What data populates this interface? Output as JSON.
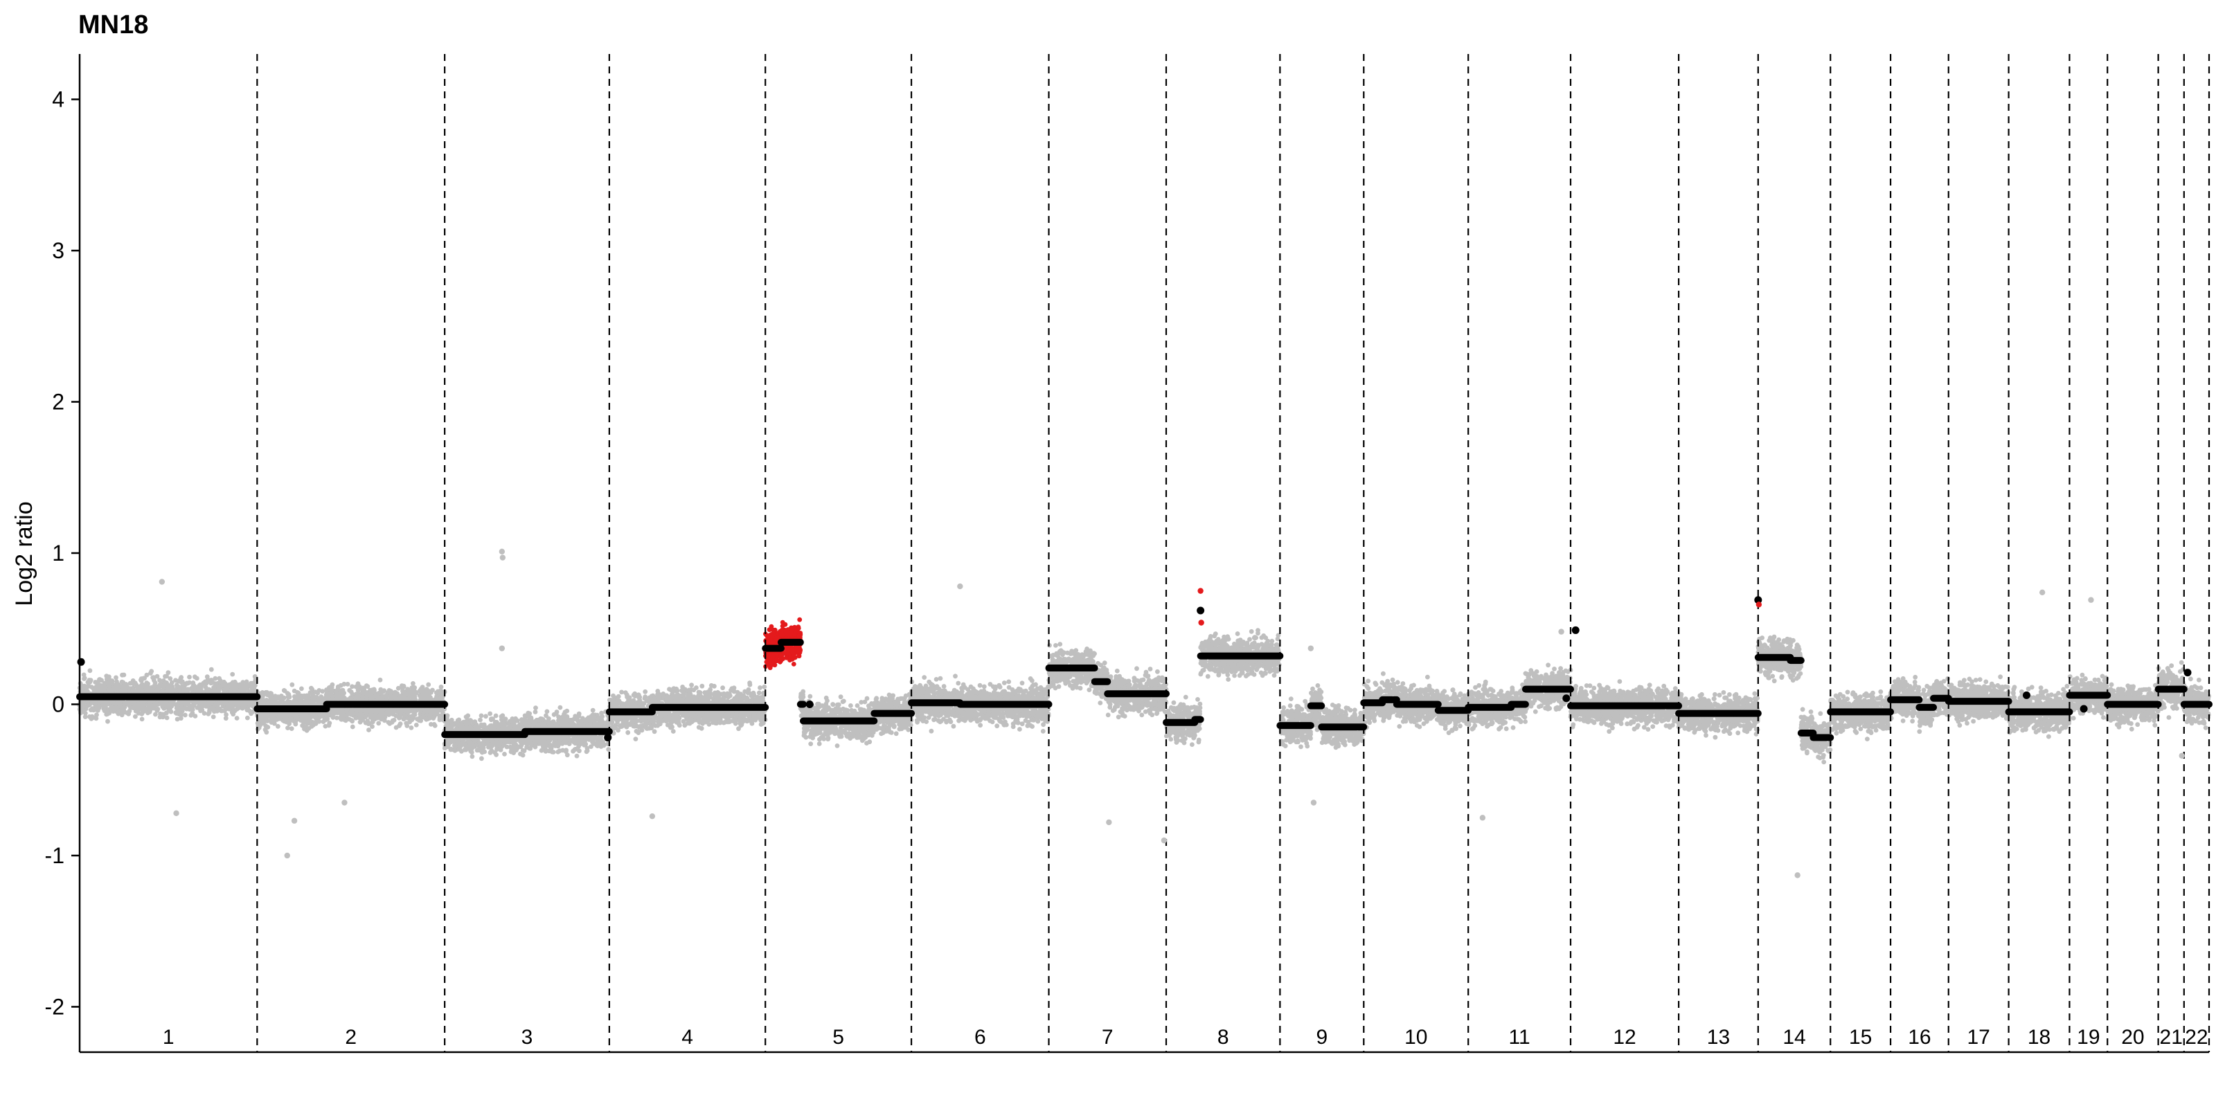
{
  "chart_data": {
    "type": "scatter",
    "title": "MN18",
    "xlabel": "",
    "ylabel": "Log2 ratio",
    "ylim": [
      -2.3,
      4.3
    ],
    "yticks": [
      -2,
      -1,
      0,
      1,
      2,
      3,
      4
    ],
    "grid": false,
    "legend": "none",
    "colors": {
      "probe_points": "#bfbfbf",
      "gain_points": "#e41a1c",
      "segments": "#000000",
      "boundaries": "#000000",
      "axis": "#000000"
    },
    "chromosomes": [
      {
        "label": "1",
        "start": 0,
        "end": 248
      },
      {
        "label": "2",
        "start": 248,
        "end": 510
      },
      {
        "label": "3",
        "start": 510,
        "end": 740
      },
      {
        "label": "4",
        "start": 740,
        "end": 958
      },
      {
        "label": "5",
        "start": 958,
        "end": 1162
      },
      {
        "label": "6",
        "start": 1162,
        "end": 1354
      },
      {
        "label": "7",
        "start": 1354,
        "end": 1518
      },
      {
        "label": "8",
        "start": 1518,
        "end": 1677
      },
      {
        "label": "9",
        "start": 1677,
        "end": 1794
      },
      {
        "label": "10",
        "start": 1794,
        "end": 1940
      },
      {
        "label": "11",
        "start": 1940,
        "end": 2083
      },
      {
        "label": "12",
        "start": 2083,
        "end": 2234
      },
      {
        "label": "13",
        "start": 2234,
        "end": 2345
      },
      {
        "label": "14",
        "start": 2345,
        "end": 2446
      },
      {
        "label": "15",
        "start": 2446,
        "end": 2530
      },
      {
        "label": "16",
        "start": 2530,
        "end": 2611
      },
      {
        "label": "17",
        "start": 2611,
        "end": 2695
      },
      {
        "label": "18",
        "start": 2695,
        "end": 2780
      },
      {
        "label": "19",
        "start": 2780,
        "end": 2833
      },
      {
        "label": "20",
        "start": 2833,
        "end": 2904
      },
      {
        "label": "21",
        "start": 2904,
        "end": 2940
      },
      {
        "label": "22",
        "start": 2940,
        "end": 2975
      }
    ],
    "segments": [
      {
        "chrom": "1",
        "start": 0,
        "end": 248,
        "value": 0.05
      },
      {
        "chrom": "2",
        "start": 248,
        "end": 345,
        "value": -0.03
      },
      {
        "chrom": "2",
        "start": 345,
        "end": 510,
        "value": 0.0
      },
      {
        "chrom": "3",
        "start": 510,
        "end": 622,
        "value": -0.2
      },
      {
        "chrom": "3",
        "start": 622,
        "end": 740,
        "value": -0.18
      },
      {
        "chrom": "4",
        "start": 740,
        "end": 800,
        "value": -0.05
      },
      {
        "chrom": "4",
        "start": 800,
        "end": 958,
        "value": -0.02
      },
      {
        "chrom": "5",
        "start": 958,
        "end": 980,
        "value": 0.37
      },
      {
        "chrom": "5",
        "start": 980,
        "end": 1007,
        "value": 0.41
      },
      {
        "chrom": "5",
        "start": 1007,
        "end": 1011,
        "value": 0.0
      },
      {
        "chrom": "5",
        "start": 1011,
        "end": 1110,
        "value": -0.11
      },
      {
        "chrom": "5",
        "start": 1110,
        "end": 1162,
        "value": -0.06
      },
      {
        "chrom": "6",
        "start": 1162,
        "end": 1230,
        "value": 0.01
      },
      {
        "chrom": "6",
        "start": 1230,
        "end": 1354,
        "value": 0.0
      },
      {
        "chrom": "7",
        "start": 1354,
        "end": 1418,
        "value": 0.24
      },
      {
        "chrom": "7",
        "start": 1418,
        "end": 1436,
        "value": 0.15
      },
      {
        "chrom": "7",
        "start": 1436,
        "end": 1518,
        "value": 0.07
      },
      {
        "chrom": "8",
        "start": 1518,
        "end": 1558,
        "value": -0.12
      },
      {
        "chrom": "8",
        "start": 1558,
        "end": 1566,
        "value": -0.1
      },
      {
        "chrom": "8",
        "start": 1566,
        "end": 1677,
        "value": 0.32
      },
      {
        "chrom": "9",
        "start": 1677,
        "end": 1720,
        "value": -0.14
      },
      {
        "chrom": "9",
        "start": 1720,
        "end": 1735,
        "value": -0.01
      },
      {
        "chrom": "9",
        "start": 1735,
        "end": 1794,
        "value": -0.15
      },
      {
        "chrom": "10",
        "start": 1794,
        "end": 1820,
        "value": 0.01
      },
      {
        "chrom": "10",
        "start": 1820,
        "end": 1840,
        "value": 0.03
      },
      {
        "chrom": "10",
        "start": 1840,
        "end": 1898,
        "value": 0.0
      },
      {
        "chrom": "10",
        "start": 1898,
        "end": 1940,
        "value": -0.04
      },
      {
        "chrom": "11",
        "start": 1940,
        "end": 2000,
        "value": -0.02
      },
      {
        "chrom": "11",
        "start": 2000,
        "end": 2020,
        "value": 0.0
      },
      {
        "chrom": "11",
        "start": 2020,
        "end": 2083,
        "value": 0.1
      },
      {
        "chrom": "12",
        "start": 2083,
        "end": 2234,
        "value": -0.01
      },
      {
        "chrom": "13",
        "start": 2234,
        "end": 2345,
        "value": -0.06
      },
      {
        "chrom": "14",
        "start": 2345,
        "end": 2390,
        "value": 0.31
      },
      {
        "chrom": "14",
        "start": 2390,
        "end": 2405,
        "value": 0.29
      },
      {
        "chrom": "14",
        "start": 2405,
        "end": 2422,
        "value": -0.19
      },
      {
        "chrom": "14",
        "start": 2422,
        "end": 2446,
        "value": -0.22
      },
      {
        "chrom": "15",
        "start": 2446,
        "end": 2530,
        "value": -0.05
      },
      {
        "chrom": "16",
        "start": 2530,
        "end": 2570,
        "value": 0.03
      },
      {
        "chrom": "16",
        "start": 2570,
        "end": 2590,
        "value": -0.02
      },
      {
        "chrom": "16",
        "start": 2590,
        "end": 2611,
        "value": 0.04
      },
      {
        "chrom": "17",
        "start": 2611,
        "end": 2695,
        "value": 0.02
      },
      {
        "chrom": "18",
        "start": 2695,
        "end": 2780,
        "value": -0.05
      },
      {
        "chrom": "19",
        "start": 2780,
        "end": 2833,
        "value": 0.06
      },
      {
        "chrom": "20",
        "start": 2833,
        "end": 2904,
        "value": 0.0
      },
      {
        "chrom": "21",
        "start": 2904,
        "end": 2940,
        "value": 0.1
      },
      {
        "chrom": "22",
        "start": 2940,
        "end": 2975,
        "value": 0.0
      }
    ],
    "outliers": [
      {
        "x": 2,
        "y": 0.28,
        "color": "black"
      },
      {
        "x": 115,
        "y": 0.81,
        "color": "gray"
      },
      {
        "x": 135,
        "y": -0.72,
        "color": "gray"
      },
      {
        "x": 290,
        "y": -1.0,
        "color": "gray"
      },
      {
        "x": 300,
        "y": -0.77,
        "color": "gray"
      },
      {
        "x": 370,
        "y": -0.65,
        "color": "gray"
      },
      {
        "x": 590,
        "y": 1.01,
        "color": "gray"
      },
      {
        "x": 591,
        "y": 0.97,
        "color": "gray"
      },
      {
        "x": 590,
        "y": 0.37,
        "color": "gray"
      },
      {
        "x": 738,
        "y": -0.22,
        "color": "black"
      },
      {
        "x": 800,
        "y": -0.74,
        "color": "gray"
      },
      {
        "x": 1020,
        "y": 0.0,
        "color": "black"
      },
      {
        "x": 1230,
        "y": 0.78,
        "color": "gray"
      },
      {
        "x": 1438,
        "y": -0.78,
        "color": "gray"
      },
      {
        "x": 1515,
        "y": -0.9,
        "color": "gray"
      },
      {
        "x": 1566,
        "y": 0.75,
        "color": "red"
      },
      {
        "x": 1566,
        "y": 0.62,
        "color": "black"
      },
      {
        "x": 1567,
        "y": 0.54,
        "color": "red"
      },
      {
        "x": 1724,
        "y": -0.65,
        "color": "gray"
      },
      {
        "x": 1720,
        "y": 0.37,
        "color": "gray"
      },
      {
        "x": 1960,
        "y": -0.75,
        "color": "gray"
      },
      {
        "x": 2070,
        "y": 0.48,
        "color": "gray"
      },
      {
        "x": 2077,
        "y": 0.04,
        "color": "black"
      },
      {
        "x": 2090,
        "y": 0.49,
        "color": "black"
      },
      {
        "x": 2345,
        "y": 0.69,
        "color": "black"
      },
      {
        "x": 2346,
        "y": 0.66,
        "color": "red"
      },
      {
        "x": 2400,
        "y": -1.13,
        "color": "gray"
      },
      {
        "x": 2720,
        "y": 0.06,
        "color": "black"
      },
      {
        "x": 2742,
        "y": 0.74,
        "color": "gray"
      },
      {
        "x": 2800,
        "y": -0.03,
        "color": "black"
      },
      {
        "x": 2810,
        "y": 0.69,
        "color": "gray"
      },
      {
        "x": 2945,
        "y": 0.21,
        "color": "black"
      },
      {
        "x": 2937,
        "y": -0.34,
        "color": "gray"
      }
    ]
  }
}
